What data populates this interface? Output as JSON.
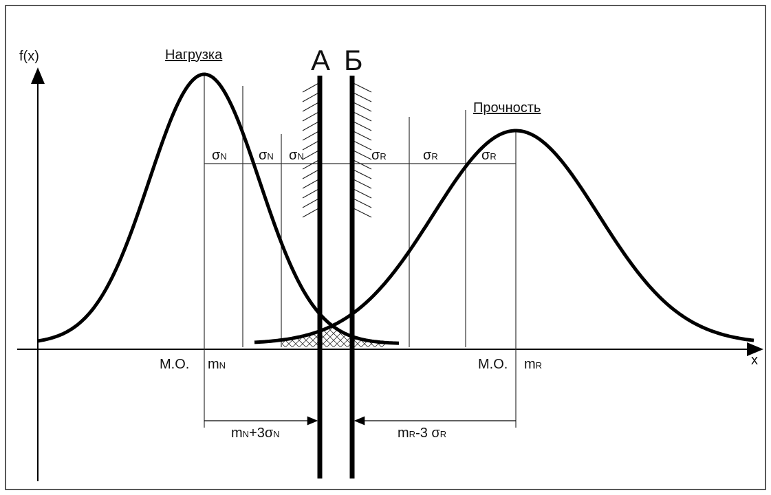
{
  "axis": {
    "y_label": "f(x)",
    "x_label": "x"
  },
  "curves": {
    "load": "Нагрузка",
    "strength": "Прочность"
  },
  "boundaries": {
    "a": "А",
    "b": "Б"
  },
  "sigma_n": [
    {
      "text": "σ",
      "sub": "N"
    },
    {
      "text": "σ",
      "sub": "N"
    },
    {
      "text": "σ",
      "sub": "N"
    }
  ],
  "sigma_r": [
    {
      "text": "σ",
      "sub": "R"
    },
    {
      "text": "σ",
      "sub": "R"
    },
    {
      "text": "σ",
      "sub": "R"
    }
  ],
  "mean_load": {
    "mo": "М.О.",
    "m": {
      "text": "m",
      "sub": "N"
    }
  },
  "mean_strength": {
    "mo": "М.О.",
    "m": {
      "text": "m",
      "sub": "R"
    }
  },
  "dim_load": [
    {
      "text": "m",
      "sub": "N"
    },
    {
      "text": "+3σ",
      "sub": "N"
    }
  ],
  "dim_strength": [
    {
      "text": "m",
      "sub": "R"
    },
    {
      "text": "-3 σ",
      "sub": "R"
    }
  ]
}
